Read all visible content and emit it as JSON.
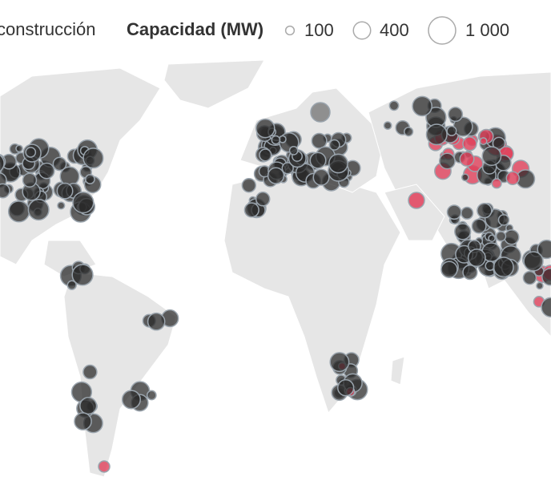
{
  "legend": {
    "status_label": "construcción",
    "size_title": "Capacidad (MW)",
    "sizes": [
      100,
      400,
      {
        "value": 1000,
        "label": "1 000"
      }
    ]
  }
}
